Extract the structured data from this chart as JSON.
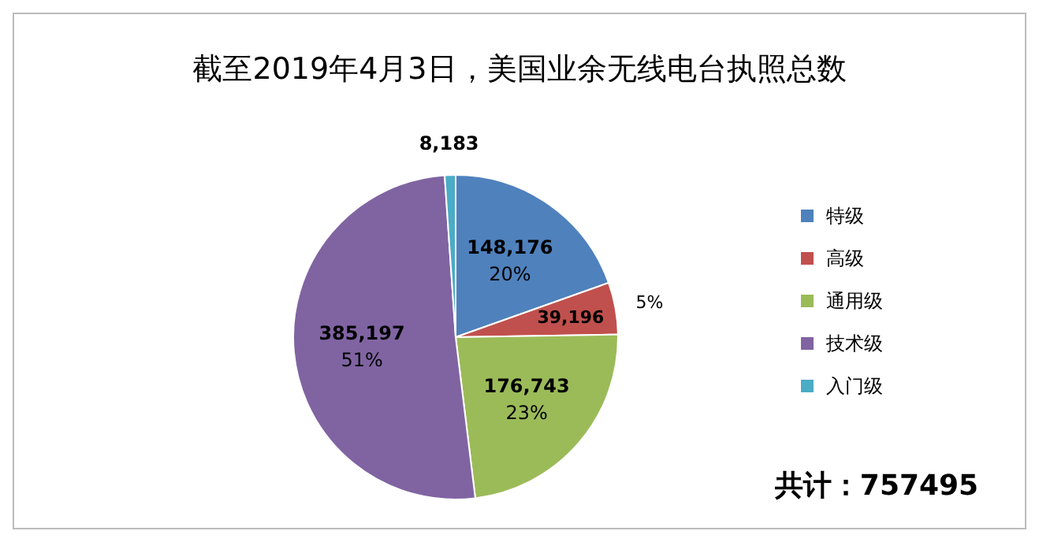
{
  "chart_data": {
    "type": "pie",
    "title": "截至2019年4月3日，美国业余无线电台执照总数",
    "categories": [
      "特级",
      "高级",
      "通用级",
      "技术级",
      "入门级"
    ],
    "values": [
      148176,
      39196,
      176743,
      385197,
      8183
    ],
    "colors": [
      "#4f81bd",
      "#c0504d",
      "#9bbb59",
      "#8064a2",
      "#4bacc6"
    ],
    "value_labels": [
      "148,176\n20%",
      "39,196\n5%",
      "176,743\n23%",
      "385,197\n51%",
      "8,183"
    ],
    "legend": "right",
    "annotations": [
      "共计：757495"
    ]
  }
}
